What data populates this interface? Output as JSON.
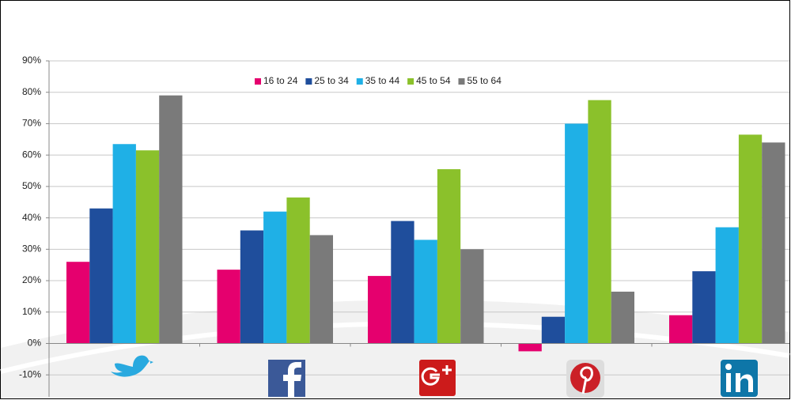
{
  "chart_data": {
    "type": "bar",
    "categories": [
      null,
      null,
      null,
      null,
      null
    ],
    "series": [
      {
        "name": "16 to 24",
        "color": "#e5006e",
        "values": [
          26,
          23.5,
          21.5,
          -2.5,
          9
        ]
      },
      {
        "name": "25 to 34",
        "color": "#1f4e9c",
        "values": [
          43,
          36,
          39,
          8.5,
          23
        ]
      },
      {
        "name": "35 to 44",
        "color": "#1fb0e6",
        "values": [
          63.5,
          42,
          33,
          70,
          37
        ]
      },
      {
        "name": "45 to 54",
        "color": "#8bc12b",
        "values": [
          61.5,
          46.5,
          55.5,
          77.5,
          66.5
        ]
      },
      {
        "name": "55 to 64",
        "color": "#7a7a7a",
        "values": [
          79,
          34.5,
          30,
          16.5,
          64
        ]
      }
    ],
    "ylim": [
      -17,
      90
    ],
    "yticks": [
      {
        "value": -10,
        "label": "-10%"
      },
      {
        "value": 0,
        "label": "0%"
      },
      {
        "value": 10,
        "label": "10%"
      },
      {
        "value": 20,
        "label": "20%"
      },
      {
        "value": 30,
        "label": "30%"
      },
      {
        "value": 40,
        "label": "40%"
      },
      {
        "value": 50,
        "label": "50%"
      },
      {
        "value": 60,
        "label": "60%"
      },
      {
        "value": 70,
        "label": "70%"
      },
      {
        "value": 80,
        "label": "80%"
      },
      {
        "value": 90,
        "label": "90%"
      }
    ],
    "grid": true,
    "legend": "top"
  }
}
